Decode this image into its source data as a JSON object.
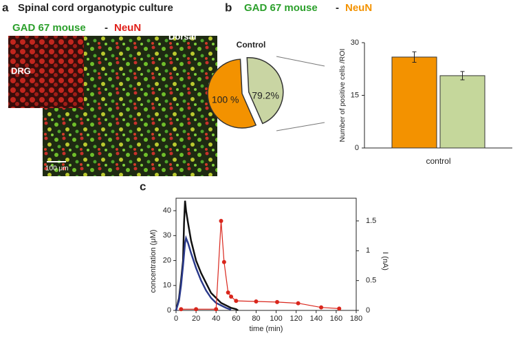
{
  "panel_a": {
    "label": "a",
    "title": "Spinal cord organotypic culture",
    "stain": [
      "GAD 67 mouse",
      "-",
      "NeuN"
    ],
    "regions": [
      "DRG",
      "Dorsal"
    ],
    "scale_bar": "100 μm"
  },
  "panel_b": {
    "label": "b",
    "title": [
      "GAD 67 mouse",
      "-",
      "NeuN"
    ]
  },
  "panel_c": {
    "label": "c"
  },
  "chart_data": [
    {
      "type": "pie",
      "title": "Control",
      "values": [
        100,
        79.2
      ],
      "value_labels": [
        "100 %",
        "79.2%"
      ],
      "colors": [
        "#f39200",
        "#c9d5a3"
      ]
    },
    {
      "type": "bar",
      "ylabel": "Number of positive cells /ROI",
      "categories": [
        "control"
      ],
      "series": [
        {
          "color": "#f39200",
          "values": [
            25.9
          ],
          "errors": [
            1.5
          ]
        },
        {
          "color": "#c5d79b",
          "values": [
            20.6
          ],
          "errors": [
            1.2
          ]
        }
      ],
      "ylim": [
        0,
        30
      ],
      "yticks": [
        0,
        15,
        30
      ]
    },
    {
      "type": "line",
      "xlabel": "time (min)",
      "ylabel": "concentration (μM)",
      "y2label": "I (nA)",
      "xlim": [
        0,
        180
      ],
      "xticks": [
        0,
        20,
        40,
        60,
        80,
        100,
        120,
        140,
        160,
        180
      ],
      "ylim": [
        0,
        45
      ],
      "yticks": [
        0,
        10,
        20,
        30,
        40
      ],
      "y2lim": [
        0,
        1.88
      ],
      "y2ticks": [
        0,
        0.5,
        1,
        1.5
      ],
      "series": [
        {
          "color": "#111111",
          "x": [
            0,
            3,
            5,
            7,
            8,
            9,
            10,
            12,
            15,
            20,
            25,
            30,
            35,
            40,
            45,
            50,
            55,
            60,
            62
          ],
          "values": [
            0,
            5,
            12,
            20,
            35,
            44,
            40,
            35,
            28,
            20,
            15,
            11,
            7,
            5,
            3,
            2,
            1,
            0.5,
            0
          ]
        },
        {
          "color": "#2b3a8c",
          "x": [
            0,
            3,
            5,
            7,
            9,
            10,
            12,
            15,
            20,
            25,
            30,
            35,
            40,
            45,
            50,
            55
          ],
          "values": [
            0,
            4,
            10,
            18,
            27,
            29,
            27,
            23,
            17,
            12,
            8,
            5,
            3,
            2,
            1,
            0.3
          ]
        },
        {
          "color": "#d9261c",
          "axis": "y2",
          "marker": true,
          "x": [
            5,
            20,
            40,
            45,
            48,
            52,
            55,
            60,
            80,
            101,
            122,
            145,
            163
          ],
          "values": [
            0.02,
            0.02,
            0.02,
            1.5,
            0.81,
            0.3,
            0.23,
            0.16,
            0.15,
            0.14,
            0.12,
            0.05,
            0.03
          ]
        }
      ]
    }
  ]
}
